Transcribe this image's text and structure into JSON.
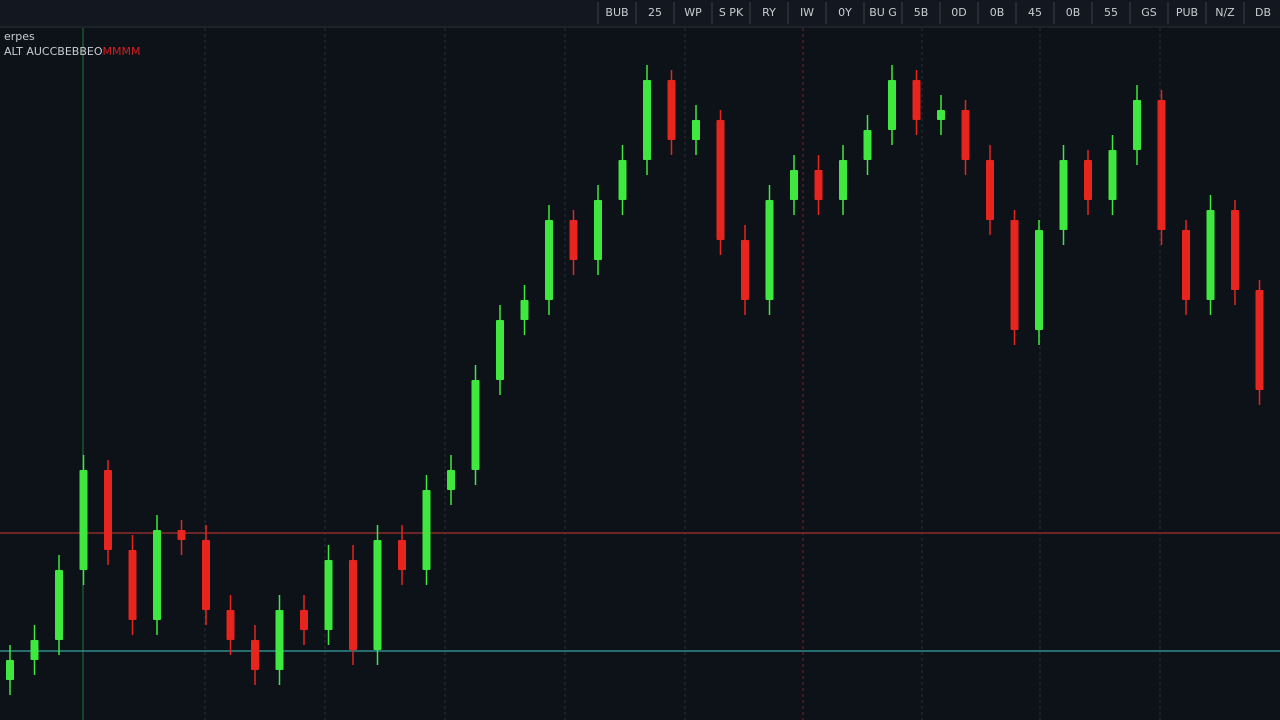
{
  "header": {
    "symbol": "erpes",
    "line": "ALT AUCCBEBBEO",
    "alert": "MMMM"
  },
  "toolbar": [
    "BUB",
    "25",
    "WP",
    "S PK",
    "RY",
    "IW",
    "0Y",
    "BU G",
    "5B",
    "0D",
    "0B",
    "45",
    "0B",
    "55",
    "GS",
    "PUB",
    "N/Z",
    "DB"
  ],
  "chart_data": {
    "type": "candlestick",
    "up_color": "#3ee83e",
    "down_color": "#e8241e",
    "ylim": [
      0,
      692
    ],
    "reference_lines": [
      {
        "value": 187,
        "color": "#8b2a2a"
      },
      {
        "value": 69,
        "color": "#2e8c8c"
      }
    ],
    "open": [
      40,
      60,
      80,
      150,
      250,
      170,
      100,
      190,
      180,
      110,
      80,
      50,
      110,
      90,
      160,
      70,
      180,
      150,
      230,
      250,
      340,
      400,
      420,
      500,
      460,
      520,
      560,
      640,
      580,
      600,
      480,
      420,
      520,
      550,
      520,
      560,
      590,
      640,
      600,
      610,
      560,
      500,
      390,
      490,
      560,
      520,
      570,
      620,
      490,
      420,
      510,
      430
    ],
    "high": [
      75,
      95,
      165,
      265,
      260,
      185,
      205,
      200,
      195,
      125,
      95,
      125,
      125,
      175,
      175,
      195,
      195,
      245,
      265,
      355,
      415,
      435,
      515,
      510,
      535,
      575,
      655,
      650,
      615,
      610,
      495,
      535,
      565,
      565,
      575,
      605,
      655,
      650,
      625,
      620,
      575,
      510,
      500,
      575,
      570,
      585,
      635,
      630,
      500,
      525,
      520,
      440
    ],
    "low": [
      25,
      45,
      65,
      135,
      155,
      85,
      85,
      165,
      95,
      65,
      35,
      35,
      75,
      75,
      55,
      55,
      135,
      135,
      215,
      235,
      325,
      385,
      405,
      445,
      445,
      505,
      545,
      565,
      565,
      465,
      405,
      405,
      505,
      505,
      505,
      545,
      575,
      585,
      585,
      545,
      485,
      375,
      375,
      475,
      505,
      505,
      555,
      475,
      405,
      405,
      415,
      315
    ],
    "close": [
      60,
      80,
      150,
      250,
      170,
      100,
      190,
      180,
      110,
      80,
      50,
      110,
      90,
      160,
      70,
      180,
      150,
      230,
      250,
      340,
      400,
      420,
      500,
      460,
      520,
      560,
      640,
      580,
      600,
      480,
      420,
      520,
      550,
      520,
      560,
      590,
      640,
      600,
      610,
      560,
      500,
      390,
      490,
      560,
      520,
      570,
      620,
      490,
      420,
      510,
      430,
      330
    ]
  }
}
